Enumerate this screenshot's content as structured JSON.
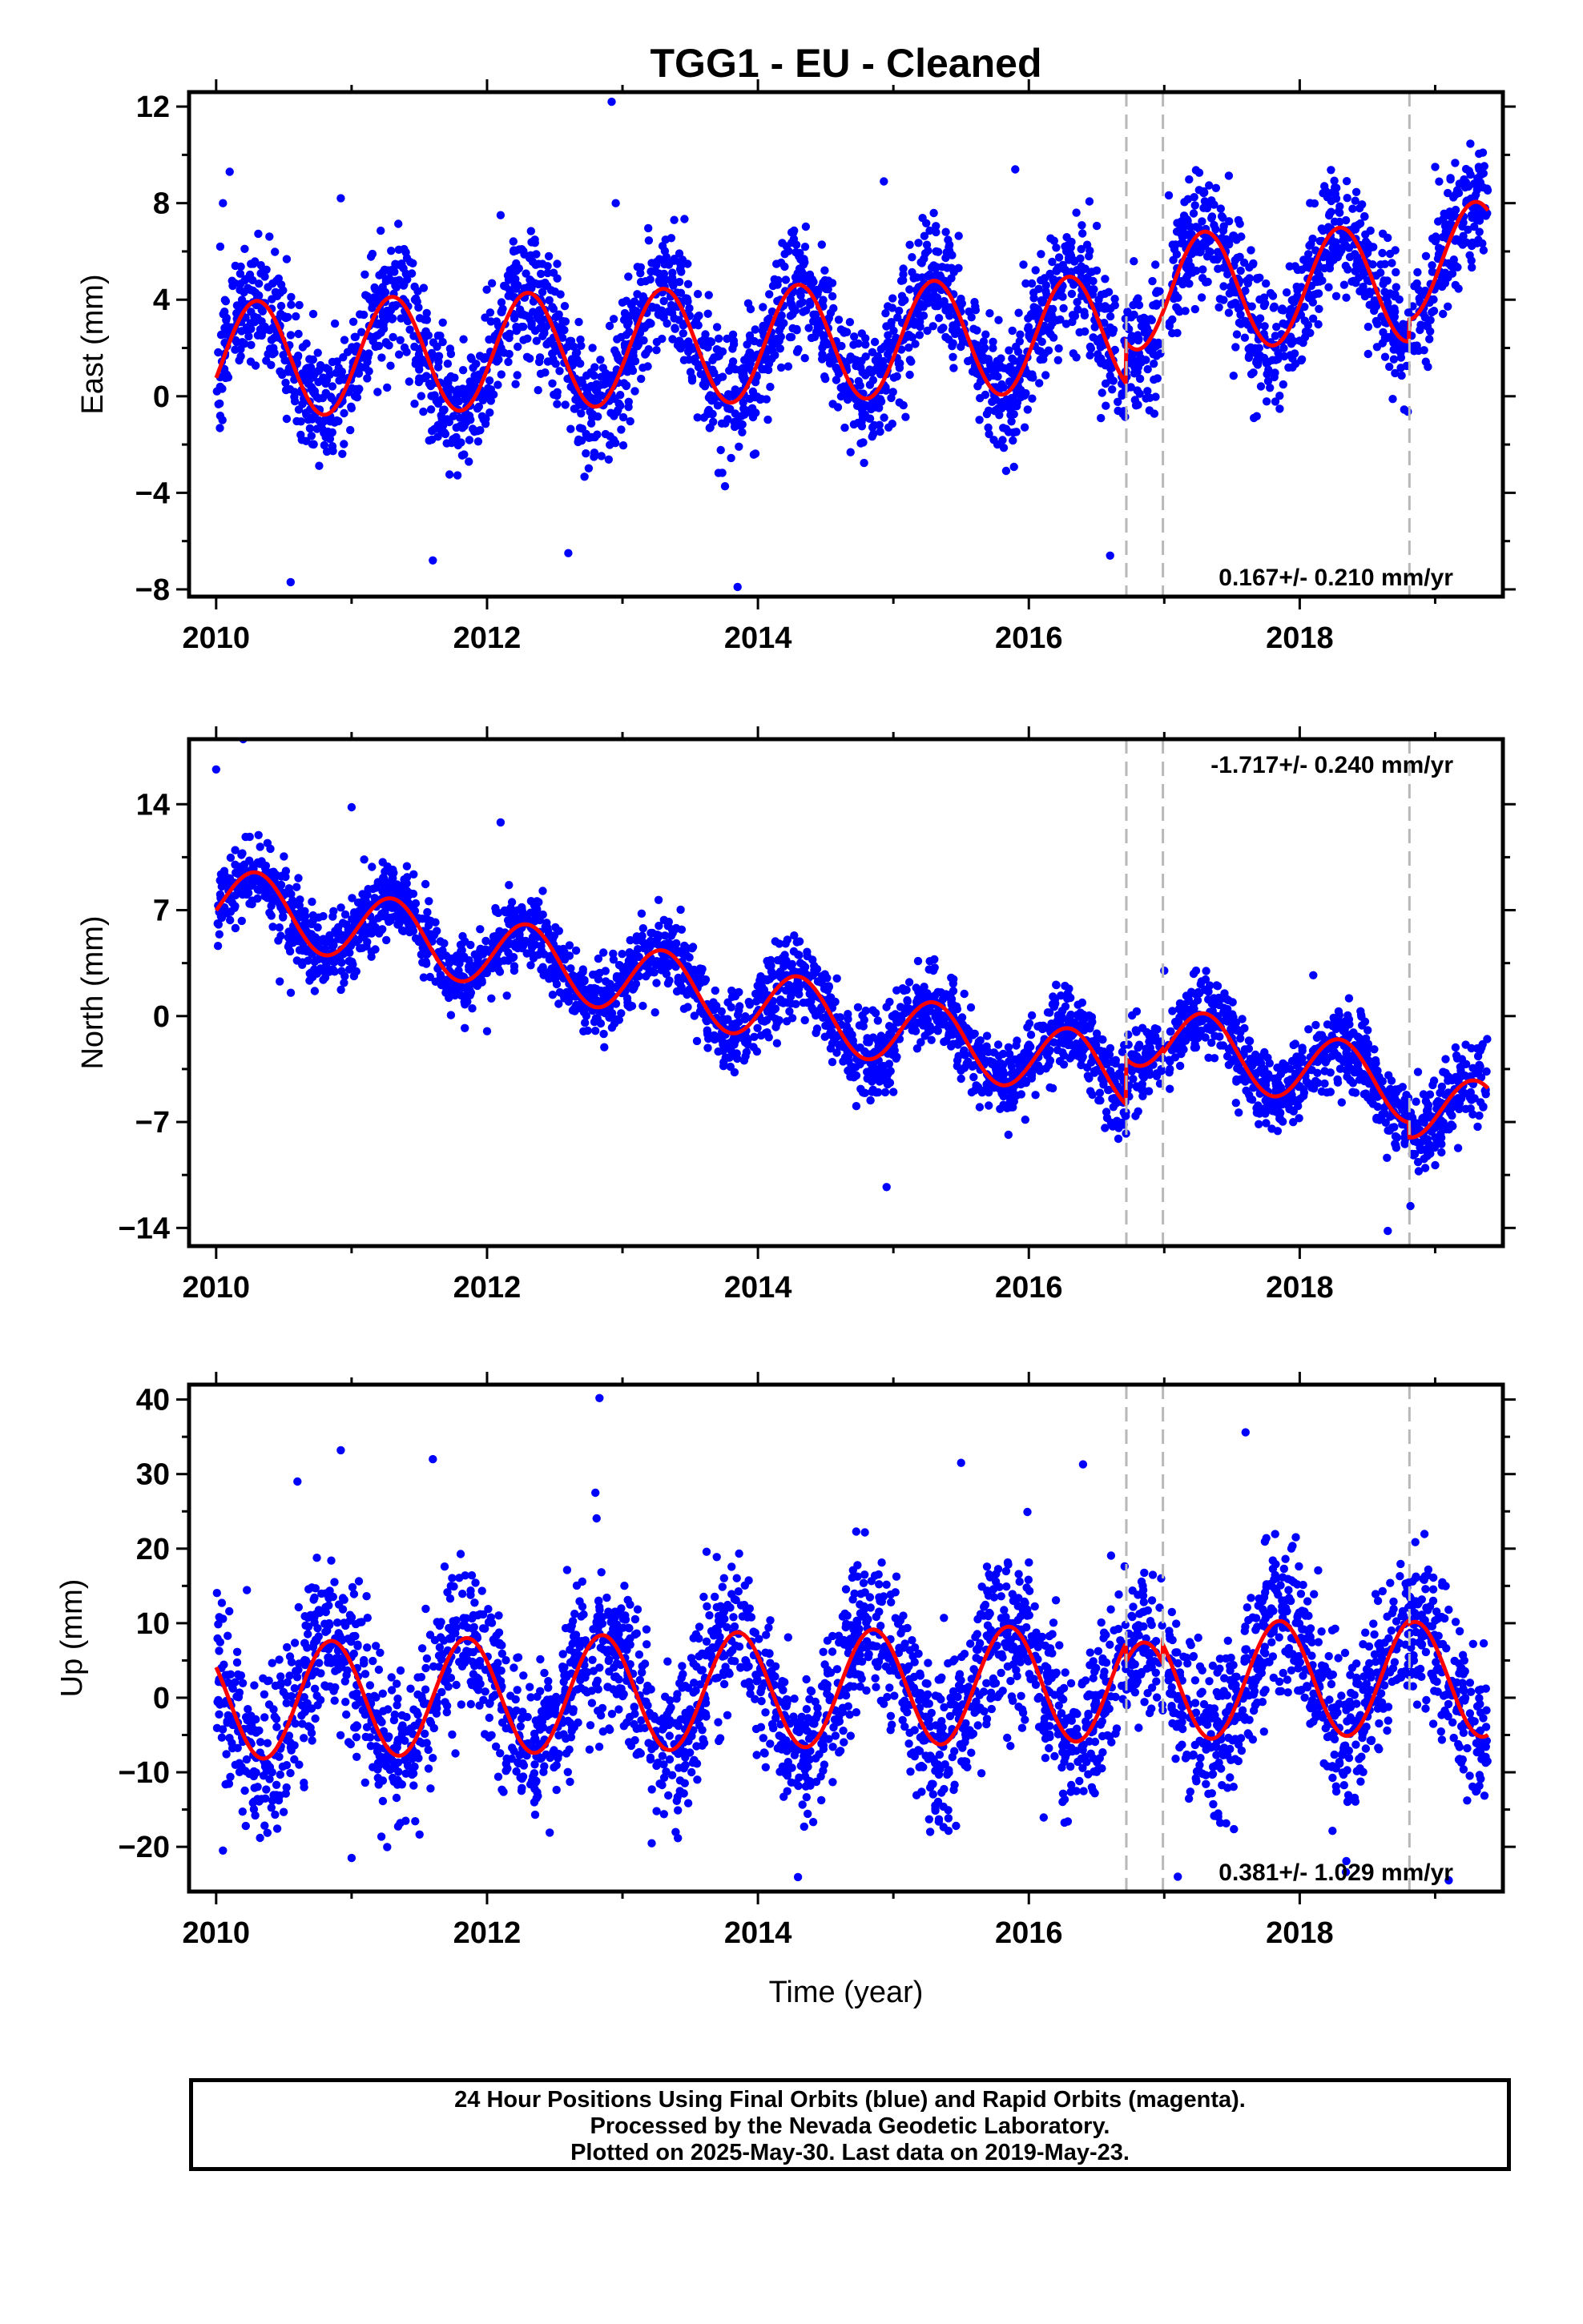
{
  "chart_data": [
    {
      "type": "scatter",
      "panel": "east",
      "title": "TGG1  - EU - Cleaned",
      "ylabel": "East (mm)",
      "xlim": [
        2009.8,
        2019.5
      ],
      "ylim": [
        -8.3,
        12.6
      ],
      "x_ticks": [
        2010,
        2012,
        2014,
        2016,
        2018
      ],
      "y_ticks": [
        -8,
        -4,
        0,
        4,
        8,
        12
      ],
      "rate_label": "0.167+/- 0.210 mm/yr",
      "rate_position": "bottom-right",
      "steps": [
        2016.72,
        2016.99,
        2018.81
      ],
      "series": [
        {
          "name": "Final Orbits",
          "color": "#0000ff",
          "style": "dots",
          "count": 3150,
          "scatter_sd": 1.3
        },
        {
          "name": "Model fit",
          "color": "#ff0000",
          "style": "line",
          "fit": {
            "t0": 2010.0,
            "intercept": 1.5,
            "rate": 0.167,
            "amplitude": 2.4,
            "phase_year": 0.05,
            "segment_offsets": [
              0.0,
              1.7,
              1.7,
              2.6
            ]
          }
        }
      ],
      "outliers": [
        [
          2010.1,
          9.3
        ],
        [
          2010.05,
          8.0
        ],
        [
          2010.03,
          6.2
        ],
        [
          2010.92,
          8.2
        ],
        [
          2012.1,
          7.5
        ],
        [
          2012.92,
          12.2
        ],
        [
          2012.95,
          8.0
        ],
        [
          2014.93,
          8.9
        ],
        [
          2015.9,
          9.4
        ],
        [
          2019.0,
          9.5
        ],
        [
          2010.55,
          -7.7
        ],
        [
          2013.85,
          -7.9
        ],
        [
          2011.6,
          -6.8
        ],
        [
          2012.6,
          -6.5
        ],
        [
          2016.6,
          -6.6
        ],
        [
          2018.2,
          6.9
        ]
      ]
    },
    {
      "type": "scatter",
      "panel": "north",
      "ylabel": "North (mm)",
      "xlim": [
        2009.8,
        2019.5
      ],
      "ylim": [
        -15.2,
        18.3
      ],
      "x_ticks": [
        2010,
        2012,
        2014,
        2016,
        2018
      ],
      "y_ticks": [
        -14,
        -7,
        0,
        7,
        14
      ],
      "rate_label": "-1.717+/- 0.240 mm/yr",
      "rate_position": "top-right",
      "steps": [
        2016.72,
        2016.99,
        2018.81
      ],
      "series": [
        {
          "name": "Final Orbits",
          "color": "#0000ff",
          "style": "dots",
          "count": 3150,
          "scatter_sd": 1.3
        },
        {
          "name": "Model fit",
          "color": "#ff0000",
          "style": "line",
          "fit": {
            "t0": 2010.0,
            "intercept": 7.7,
            "rate": -1.717,
            "amplitude": 2.3,
            "phase_year": 0.05,
            "segment_offsets": [
              0.0,
              3.0,
              2.7,
              1.7
            ]
          }
        }
      ],
      "outliers": [
        [
          2010.0,
          16.3
        ],
        [
          2010.2,
          18.3
        ],
        [
          2011.0,
          13.8
        ],
        [
          2012.1,
          12.8
        ],
        [
          2014.95,
          -11.3
        ],
        [
          2018.1,
          2.7
        ],
        [
          2017.0,
          3.0
        ],
        [
          2012.0,
          -1.0
        ],
        [
          2018.65,
          -14.2
        ]
      ]
    },
    {
      "type": "scatter",
      "panel": "up",
      "ylabel": "Up (mm)",
      "xlabel": "Time (year)",
      "xlim": [
        2009.8,
        2019.5
      ],
      "ylim": [
        -26,
        42
      ],
      "x_ticks": [
        2010,
        2012,
        2014,
        2016,
        2018
      ],
      "y_ticks": [
        -20,
        -10,
        0,
        10,
        20,
        30,
        40
      ],
      "rate_label": "0.381+/- 1.029 mm/yr",
      "rate_position": "bottom-right",
      "steps": [
        2016.72,
        2016.99,
        2018.81
      ],
      "series": [
        {
          "name": "Final Orbits",
          "color": "#0000ff",
          "style": "dots",
          "count": 3150,
          "scatter_sd": 5.5
        },
        {
          "name": "Model fit",
          "color": "#ff0000",
          "style": "line",
          "fit": {
            "t0": 2010.0,
            "intercept": -0.5,
            "rate": 0.381,
            "amplitude": -7.8,
            "phase_year": 0.1,
            "segment_offsets": [
              0.0,
              -2.5,
              0.0,
              -0.5
            ]
          }
        }
      ],
      "outliers": [
        [
          2012.83,
          40.2
        ],
        [
          2010.92,
          33.2
        ],
        [
          2011.6,
          32.0
        ],
        [
          2017.6,
          35.6
        ],
        [
          2016.4,
          31.3
        ],
        [
          2015.5,
          31.5
        ],
        [
          2012.8,
          27.5
        ],
        [
          2010.6,
          29.0
        ],
        [
          2017.1,
          -24.0
        ],
        [
          2019.1,
          -24.5
        ],
        [
          2010.05,
          -20.5
        ],
        [
          2011.0,
          -21.5
        ]
      ]
    }
  ],
  "footer": {
    "line1": "24 Hour Positions Using Final Orbits (blue) and Rapid Orbits (magenta).",
    "line2": "Processed by the Nevada Geodetic Laboratory.",
    "line3": "Plotted on 2025-May-30. Last data on 2019-May-23."
  }
}
